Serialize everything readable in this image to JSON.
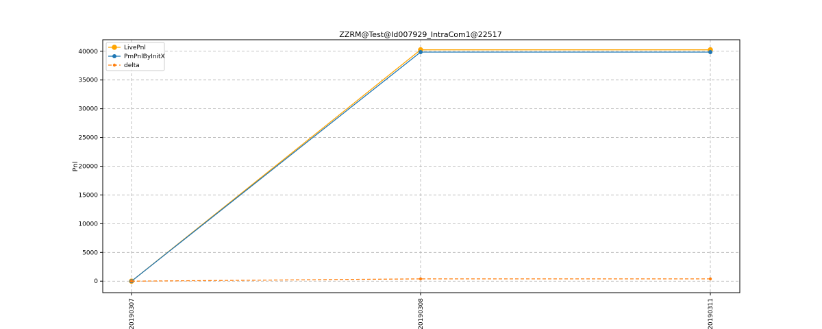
{
  "chart_data": {
    "type": "line",
    "title": "ZZRM@Test@Id007929_IntraCom1@22517",
    "xlabel": "",
    "ylabel": "Pnl",
    "categories": [
      "20190307",
      "20190308",
      "20190311"
    ],
    "ylim": [
      -2000,
      42000
    ],
    "yticks": [
      0,
      5000,
      10000,
      15000,
      20000,
      25000,
      30000,
      35000,
      40000
    ],
    "grid": true,
    "legend_position": "top-left",
    "series": [
      {
        "name": "LivePnl",
        "values": [
          0,
          40250,
          40250
        ],
        "color": "#ffa500",
        "style": "solid",
        "marker": "large-circle"
      },
      {
        "name": "PmPnlByInitX",
        "values": [
          0,
          39850,
          39850
        ],
        "color": "#1f77b4",
        "style": "solid",
        "marker": "circle"
      },
      {
        "name": "delta",
        "values": [
          0,
          400,
          400
        ],
        "color": "#ff7f0e",
        "style": "dashed",
        "marker": "small-circle"
      }
    ]
  }
}
